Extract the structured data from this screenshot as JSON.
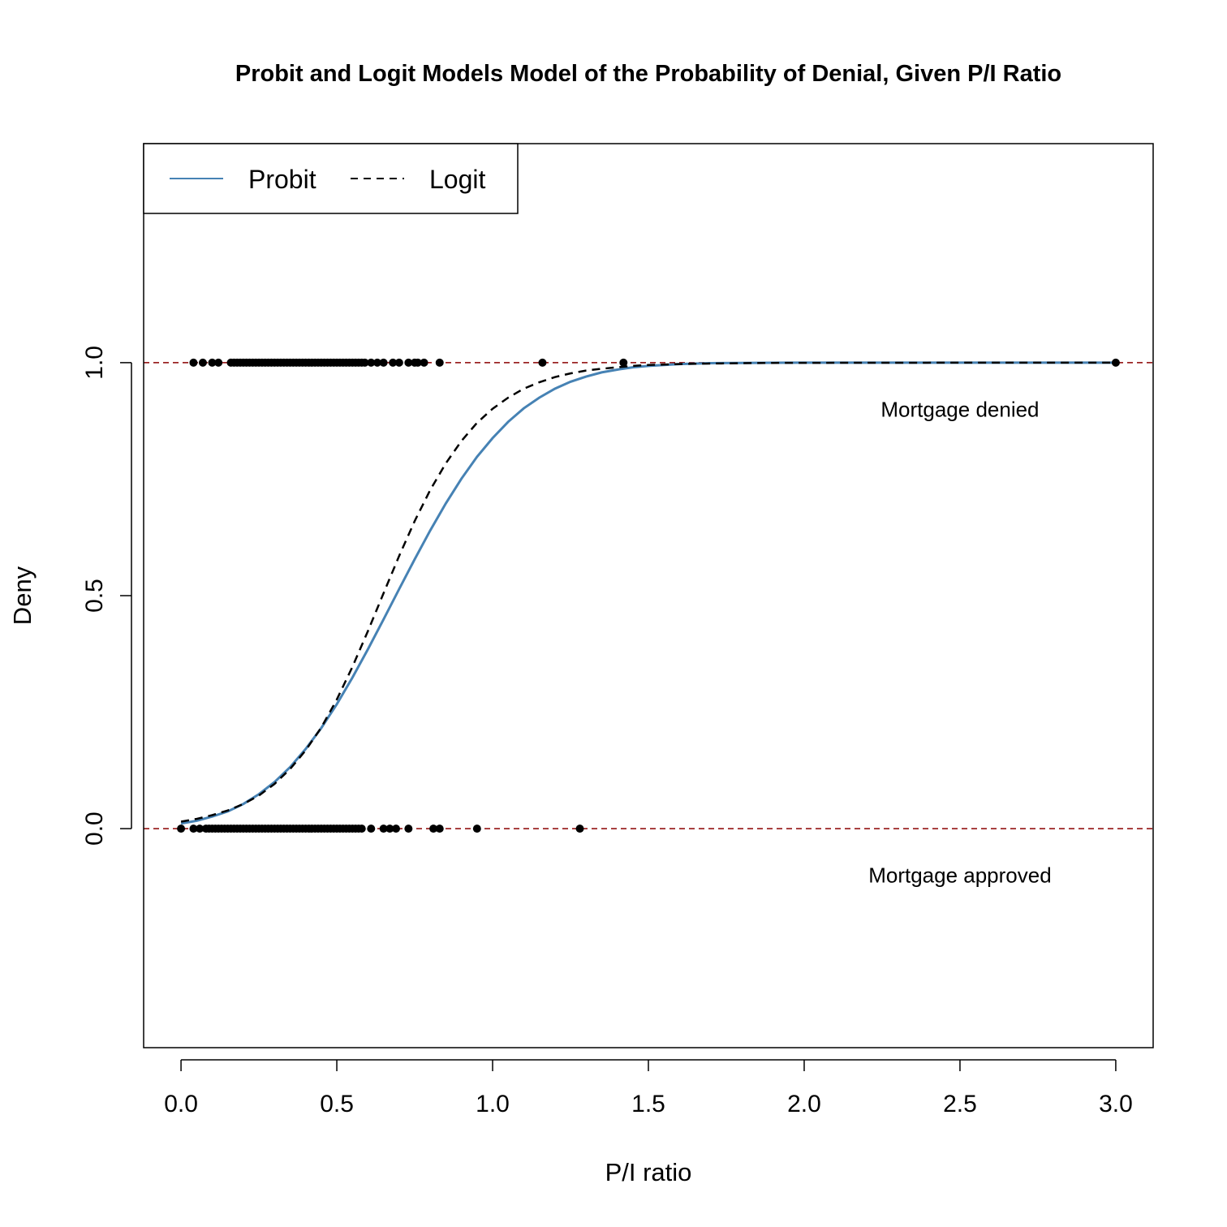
{
  "chart_data": {
    "type": "scatter",
    "title": "Probit and Logit Models Model of the Probability of Denial, Given P/I Ratio",
    "xlabel": "P/I ratio",
    "ylabel": "Deny",
    "xlim": [
      -0.12,
      3.12
    ],
    "ylim": [
      -0.47,
      1.47
    ],
    "x_ticks": [
      "0.0",
      "0.5",
      "1.0",
      "1.5",
      "2.0",
      "2.5",
      "3.0"
    ],
    "y_ticks": [
      "0.0",
      "0.5",
      "1.0"
    ],
    "grid": false,
    "reference_lines": [
      {
        "y": 0,
        "color": "#8B0000",
        "style": "dashed"
      },
      {
        "y": 1,
        "color": "#8B0000",
        "style": "dashed"
      }
    ],
    "annotations": [
      {
        "text": "Mortgage denied",
        "x": 2.5,
        "y": 0.9
      },
      {
        "text": "Mortgage approved",
        "x": 2.5,
        "y": -0.1
      }
    ],
    "legend": {
      "position": "top-left",
      "entries": [
        {
          "label": "Probit",
          "color": "#4682B4",
          "style": "solid"
        },
        {
          "label": "Logit",
          "color": "#000000",
          "style": "dashed"
        }
      ]
    },
    "series": [
      {
        "name": "Probit",
        "kind": "line",
        "color": "#4682B4",
        "style": "solid",
        "x": [
          0.0,
          0.05,
          0.1,
          0.15,
          0.2,
          0.25,
          0.3,
          0.35,
          0.4,
          0.45,
          0.5,
          0.55,
          0.6,
          0.65,
          0.7,
          0.75,
          0.8,
          0.85,
          0.9,
          0.95,
          1.0,
          1.05,
          1.1,
          1.15,
          1.2,
          1.25,
          1.3,
          1.35,
          1.4,
          1.45,
          1.5,
          1.6,
          1.7,
          1.8,
          1.9,
          2.0,
          2.5,
          3.0
        ],
        "y": [
          0.011,
          0.017,
          0.026,
          0.037,
          0.053,
          0.074,
          0.1,
          0.132,
          0.171,
          0.216,
          0.267,
          0.324,
          0.385,
          0.449,
          0.514,
          0.578,
          0.64,
          0.698,
          0.751,
          0.798,
          0.838,
          0.873,
          0.902,
          0.925,
          0.944,
          0.959,
          0.97,
          0.979,
          0.985,
          0.99,
          0.993,
          0.997,
          0.999,
          0.9995,
          0.9998,
          0.9999,
          1.0,
          1.0
        ]
      },
      {
        "name": "Logit",
        "kind": "line",
        "color": "#000000",
        "style": "dashed",
        "x": [
          0.0,
          0.05,
          0.1,
          0.15,
          0.2,
          0.25,
          0.3,
          0.35,
          0.4,
          0.45,
          0.5,
          0.55,
          0.6,
          0.65,
          0.7,
          0.75,
          0.8,
          0.85,
          0.9,
          0.95,
          1.0,
          1.05,
          1.1,
          1.15,
          1.2,
          1.25,
          1.3,
          1.35,
          1.4,
          1.45,
          1.5,
          1.6,
          1.7,
          1.8,
          1.9,
          2.0,
          2.5,
          3.0
        ],
        "y": [
          0.015,
          0.021,
          0.029,
          0.039,
          0.053,
          0.071,
          0.096,
          0.128,
          0.168,
          0.217,
          0.277,
          0.347,
          0.424,
          0.505,
          0.585,
          0.66,
          0.727,
          0.784,
          0.832,
          0.871,
          0.901,
          0.925,
          0.944,
          0.958,
          0.969,
          0.977,
          0.983,
          0.987,
          0.99,
          0.993,
          0.995,
          0.997,
          0.998,
          0.999,
          0.9995,
          0.9997,
          1.0,
          1.0
        ]
      },
      {
        "name": "",
        "kind": "points",
        "color": "#000000",
        "x": [
          0.04,
          0.07,
          0.1,
          0.12,
          0.16,
          0.17,
          0.18,
          0.19,
          0.2,
          0.21,
          0.22,
          0.23,
          0.24,
          0.25,
          0.26,
          0.27,
          0.28,
          0.29,
          0.3,
          0.31,
          0.32,
          0.33,
          0.34,
          0.35,
          0.36,
          0.37,
          0.38,
          0.39,
          0.4,
          0.41,
          0.42,
          0.43,
          0.44,
          0.45,
          0.46,
          0.47,
          0.48,
          0.49,
          0.5,
          0.51,
          0.52,
          0.53,
          0.54,
          0.55,
          0.56,
          0.57,
          0.58,
          0.59,
          0.61,
          0.63,
          0.65,
          0.68,
          0.7,
          0.73,
          0.75,
          0.76,
          0.78,
          0.83,
          1.16,
          1.42,
          3.0
        ],
        "y": [
          1,
          1,
          1,
          1,
          1,
          1,
          1,
          1,
          1,
          1,
          1,
          1,
          1,
          1,
          1,
          1,
          1,
          1,
          1,
          1,
          1,
          1,
          1,
          1,
          1,
          1,
          1,
          1,
          1,
          1,
          1,
          1,
          1,
          1,
          1,
          1,
          1,
          1,
          1,
          1,
          1,
          1,
          1,
          1,
          1,
          1,
          1,
          1,
          1,
          1,
          1,
          1,
          1,
          1,
          1,
          1,
          1,
          1,
          1,
          1,
          1
        ]
      },
      {
        "name": "",
        "kind": "points",
        "color": "#000000",
        "x": [
          0.0,
          0.04,
          0.06,
          0.08,
          0.09,
          0.1,
          0.11,
          0.12,
          0.13,
          0.14,
          0.15,
          0.16,
          0.17,
          0.18,
          0.19,
          0.2,
          0.21,
          0.22,
          0.23,
          0.24,
          0.25,
          0.26,
          0.27,
          0.28,
          0.29,
          0.3,
          0.31,
          0.32,
          0.33,
          0.34,
          0.35,
          0.36,
          0.37,
          0.38,
          0.39,
          0.4,
          0.41,
          0.42,
          0.43,
          0.44,
          0.45,
          0.46,
          0.47,
          0.48,
          0.49,
          0.5,
          0.51,
          0.52,
          0.53,
          0.54,
          0.55,
          0.56,
          0.57,
          0.58,
          0.61,
          0.65,
          0.67,
          0.69,
          0.73,
          0.81,
          0.83,
          0.95,
          1.28
        ],
        "y": [
          0,
          0,
          0,
          0,
          0,
          0,
          0,
          0,
          0,
          0,
          0,
          0,
          0,
          0,
          0,
          0,
          0,
          0,
          0,
          0,
          0,
          0,
          0,
          0,
          0,
          0,
          0,
          0,
          0,
          0,
          0,
          0,
          0,
          0,
          0,
          0,
          0,
          0,
          0,
          0,
          0,
          0,
          0,
          0,
          0,
          0,
          0,
          0,
          0,
          0,
          0,
          0,
          0,
          0,
          0,
          0,
          0,
          0,
          0,
          0,
          0,
          0,
          0
        ]
      }
    ]
  }
}
